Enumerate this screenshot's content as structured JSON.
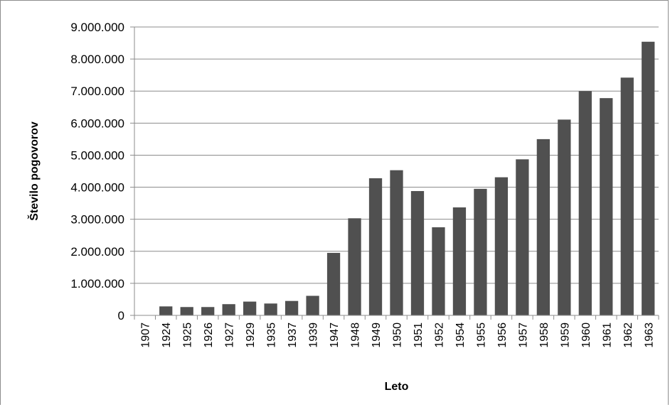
{
  "chart_data": {
    "type": "bar",
    "title": "",
    "xlabel": "Leto",
    "ylabel": "Število pogovorov",
    "ylim": [
      0,
      9000000
    ],
    "yticks": [
      "0",
      "1.000.000",
      "2.000.000",
      "3.000.000",
      "4.000.000",
      "5.000.000",
      "6.000.000",
      "7.000.000",
      "8.000.000",
      "9.000.000"
    ],
    "grid": true,
    "legend": "none",
    "bar_color": "#505050",
    "categories": [
      "1907",
      "1924",
      "1925",
      "1926",
      "1927",
      "1929",
      "1935",
      "1937",
      "1939",
      "1947",
      "1948",
      "1949",
      "1950",
      "1951",
      "1952",
      "1954",
      "1955",
      "1956",
      "1957",
      "1958",
      "1959",
      "1960",
      "1961",
      "1962",
      "1963"
    ],
    "values": [
      0,
      280000,
      260000,
      260000,
      350000,
      430000,
      370000,
      450000,
      610000,
      1950000,
      3030000,
      4280000,
      4530000,
      3880000,
      2750000,
      3370000,
      3950000,
      4310000,
      4870000,
      5500000,
      6110000,
      7000000,
      6780000,
      7420000,
      8540000
    ]
  }
}
